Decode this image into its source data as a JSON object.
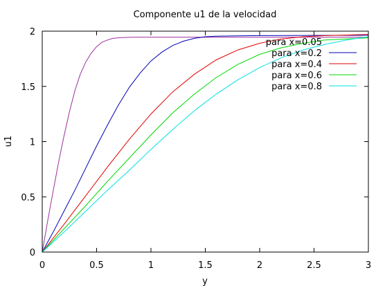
{
  "chart_data": {
    "type": "line",
    "title": "Componente u1 de la velocidad",
    "xlabel": "y",
    "ylabel": "u1",
    "xlim": [
      0,
      3
    ],
    "ylim": [
      0,
      2
    ],
    "x_ticks": [
      0,
      0.5,
      1,
      1.5,
      2,
      2.5,
      3
    ],
    "x_tick_labels": [
      "0",
      "0.5",
      "1",
      "1.5",
      "2",
      "2.5",
      "3"
    ],
    "y_ticks": [
      0,
      0.5,
      1,
      1.5,
      2
    ],
    "y_tick_labels": [
      "0",
      "0.5",
      "1",
      "1.5",
      "2"
    ],
    "grid": false,
    "legend_position": "top-right",
    "series": [
      {
        "name": "para x=0.05",
        "color": "#9b2f9b",
        "x": [
          0,
          0.05,
          0.1,
          0.15,
          0.2,
          0.25,
          0.3,
          0.35,
          0.4,
          0.45,
          0.5,
          0.55,
          0.6,
          0.65,
          0.7,
          0.75,
          0.8,
          0.85,
          0.9,
          1.0,
          1.5,
          2.0,
          2.5,
          3.0
        ],
        "y": [
          0,
          0.28,
          0.55,
          0.81,
          1.05,
          1.27,
          1.46,
          1.61,
          1.72,
          1.8,
          1.86,
          1.9,
          1.92,
          1.935,
          1.94,
          1.943,
          1.944,
          1.945,
          1.945,
          1.945,
          1.945,
          1.945,
          1.945,
          1.945
        ]
      },
      {
        "name": "para x=0.2",
        "color": "#0000b4",
        "x": [
          0,
          0.1,
          0.2,
          0.3,
          0.4,
          0.5,
          0.6,
          0.7,
          0.8,
          0.9,
          1.0,
          1.1,
          1.2,
          1.3,
          1.4,
          1.5,
          1.6,
          1.8,
          2.0,
          2.5,
          3.0
        ],
        "y": [
          0,
          0.18,
          0.37,
          0.56,
          0.76,
          0.96,
          1.15,
          1.33,
          1.49,
          1.62,
          1.73,
          1.81,
          1.87,
          1.91,
          1.935,
          1.95,
          1.955,
          1.958,
          1.96,
          1.962,
          1.963
        ]
      },
      {
        "name": "para x=0.4",
        "color": "#e00000",
        "x": [
          0,
          0.2,
          0.4,
          0.6,
          0.8,
          1.0,
          1.2,
          1.4,
          1.6,
          1.8,
          2.0,
          2.2,
          2.4,
          2.6,
          2.8,
          3.0
        ],
        "y": [
          0,
          0.25,
          0.51,
          0.77,
          1.02,
          1.25,
          1.45,
          1.61,
          1.74,
          1.83,
          1.89,
          1.93,
          1.95,
          1.96,
          1.965,
          1.97
        ]
      },
      {
        "name": "para x=0.6",
        "color": "#00d800",
        "x": [
          0,
          0.2,
          0.4,
          0.6,
          0.8,
          1.0,
          1.2,
          1.4,
          1.6,
          1.8,
          2.0,
          2.2,
          2.4,
          2.6,
          2.8,
          3.0
        ],
        "y": [
          0,
          0.21,
          0.42,
          0.64,
          0.85,
          1.06,
          1.26,
          1.43,
          1.58,
          1.7,
          1.79,
          1.85,
          1.89,
          1.92,
          1.93,
          1.94
        ]
      },
      {
        "name": "para x=0.8",
        "color": "#00e0e0",
        "x": [
          0,
          0.2,
          0.4,
          0.6,
          0.8,
          1.0,
          1.2,
          1.4,
          1.6,
          1.8,
          2.0,
          2.2,
          2.4,
          2.6,
          2.8,
          3.0
        ],
        "y": [
          0,
          0.18,
          0.37,
          0.56,
          0.74,
          0.93,
          1.11,
          1.28,
          1.43,
          1.56,
          1.67,
          1.76,
          1.83,
          1.88,
          1.92,
          1.95
        ]
      }
    ]
  }
}
